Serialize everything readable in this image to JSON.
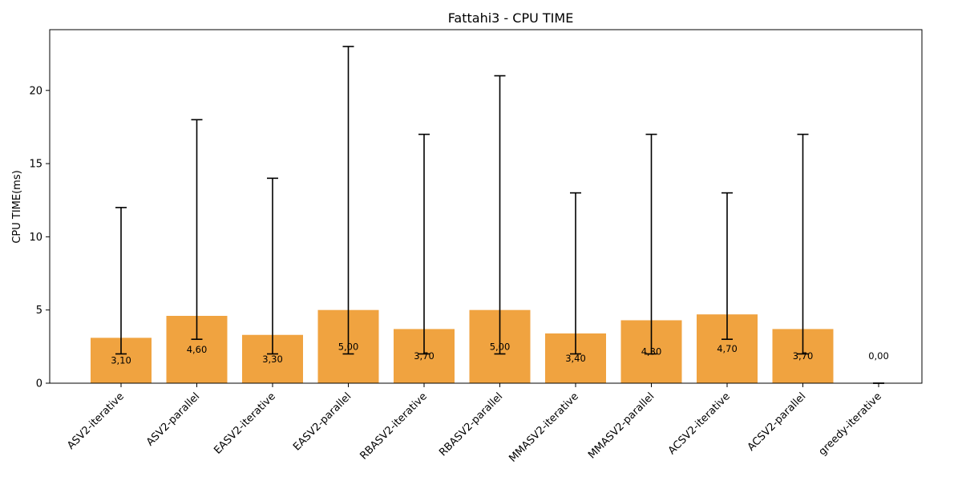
{
  "chart_data": {
    "type": "bar",
    "title": "Fattahi3 - CPU TIME",
    "xlabel": "",
    "ylabel": "CPU TIME(ms)",
    "ylim": [
      0,
      24.15
    ],
    "yticks": [
      0,
      5,
      10,
      15,
      20
    ],
    "grid": false,
    "bar_color": "#f0a340",
    "categories": [
      "ASV2-iterative",
      "ASV2-parallel",
      "EASV2-iterative",
      "EASV2-parallel",
      "RBASV2-iterative",
      "RBASV2-parallel",
      "MMASV2-iterative",
      "MMASV2-parallel",
      "ACSV2-iterative",
      "ACSV2-parallel",
      "greedy-iterative"
    ],
    "values": [
      3.1,
      4.6,
      3.3,
      5.0,
      3.7,
      5.0,
      3.4,
      4.3,
      4.7,
      3.7,
      0.0
    ],
    "value_labels": [
      "3,10",
      "4,60",
      "3,30",
      "5,00",
      "3,70",
      "5,00",
      "3,40",
      "4,30",
      "4,70",
      "3,70",
      "0,00"
    ],
    "error_min": [
      2,
      3,
      2,
      2,
      2,
      2,
      2,
      2,
      3,
      2,
      0
    ],
    "error_max": [
      12,
      18,
      14,
      23,
      17,
      21,
      13,
      17,
      13,
      17,
      0
    ]
  }
}
